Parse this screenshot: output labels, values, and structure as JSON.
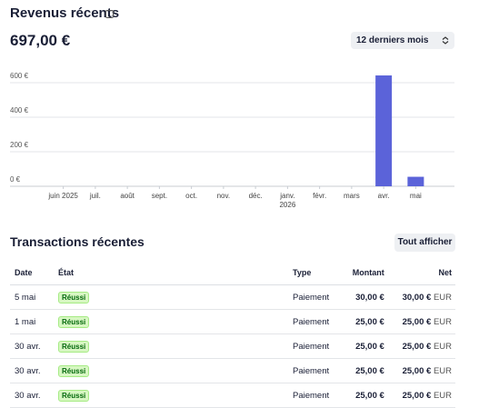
{
  "header": {
    "title": "Revenus récents",
    "total": "697,00 €",
    "period": "12 derniers mois"
  },
  "chart_data": {
    "type": "bar",
    "categories": [
      "juin 2025",
      "juil.",
      "août",
      "sept.",
      "oct.",
      "nov.",
      "déc.",
      "janv. 2026",
      "févr.",
      "mars",
      "avr.",
      "mai"
    ],
    "values": [
      0,
      0,
      0,
      0,
      0,
      0,
      0,
      0,
      0,
      0,
      642,
      55
    ],
    "color": "#5b63d9",
    "ylim": [
      0,
      650
    ],
    "yticks": [
      {
        "value": 0,
        "label": "0 €"
      },
      {
        "value": 200,
        "label": "200 €"
      },
      {
        "value": 400,
        "label": "400 €"
      },
      {
        "value": 600,
        "label": "600 €"
      }
    ],
    "grid": true
  },
  "transactions": {
    "title": "Transactions récentes",
    "button": "Tout afficher",
    "columns": [
      "Date",
      "État",
      "Type",
      "Montant",
      "Net"
    ],
    "rows": [
      {
        "date": "5 mai",
        "status": "Réussi",
        "type": "Paiement",
        "amount": "30,00 €",
        "net": "30,00 €",
        "currency": "EUR"
      },
      {
        "date": "1 mai",
        "status": "Réussi",
        "type": "Paiement",
        "amount": "25,00 €",
        "net": "25,00 €",
        "currency": "EUR"
      },
      {
        "date": "30 avr.",
        "status": "Réussi",
        "type": "Paiement",
        "amount": "25,00 €",
        "net": "25,00 €",
        "currency": "EUR"
      },
      {
        "date": "30 avr.",
        "status": "Réussi",
        "type": "Paiement",
        "amount": "25,00 €",
        "net": "25,00 €",
        "currency": "EUR"
      },
      {
        "date": "30 avr.",
        "status": "Réussi",
        "type": "Paiement",
        "amount": "25,00 €",
        "net": "25,00 €",
        "currency": "EUR"
      }
    ]
  }
}
